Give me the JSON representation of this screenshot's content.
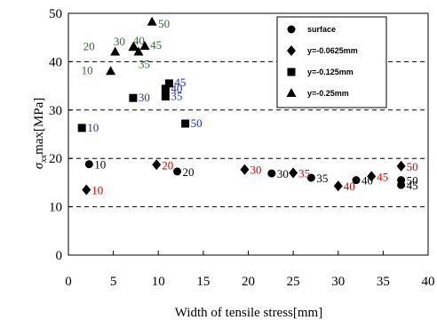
{
  "chart_data": {
    "type": "scatter",
    "xlabel": "Width of tensile stress[mm]",
    "ylabel": {
      "sigma": "σ",
      "sub": "xx",
      "rest": "max[MPa]"
    },
    "xlim": [
      0,
      40
    ],
    "ylim": [
      0,
      50
    ],
    "xticks": [
      0,
      5,
      10,
      15,
      20,
      25,
      30,
      35,
      40
    ],
    "yticks": [
      0,
      10,
      20,
      30,
      40,
      50
    ],
    "grid": "y-dashed",
    "legend_position": "top-right inside",
    "series": [
      {
        "name": "surface",
        "marker": "circle",
        "label_color": "#000000",
        "points": [
          {
            "x": 2.3,
            "y": 18.8,
            "label": "10"
          },
          {
            "x": 12.1,
            "y": 17.3,
            "label": "20"
          },
          {
            "x": 22.6,
            "y": 16.9,
            "label": "30"
          },
          {
            "x": 27.0,
            "y": 16.0,
            "label": "35"
          },
          {
            "x": 32.0,
            "y": 15.5,
            "label": "40"
          },
          {
            "x": 37.0,
            "y": 14.5,
            "label": "45"
          },
          {
            "x": 37.0,
            "y": 15.5,
            "label": "50"
          }
        ]
      },
      {
        "name": "y=-0.0625mm",
        "marker": "diamond",
        "label_color": "#cc0000",
        "points": [
          {
            "x": 2.0,
            "y": 13.5,
            "label": "10"
          },
          {
            "x": 9.8,
            "y": 18.7,
            "label": "20"
          },
          {
            "x": 19.6,
            "y": 17.7,
            "label": "30"
          },
          {
            "x": 25.0,
            "y": 17.0,
            "label": "35"
          },
          {
            "x": 30.0,
            "y": 14.3,
            "label": "40"
          },
          {
            "x": 33.7,
            "y": 16.3,
            "label": "45"
          },
          {
            "x": 37.0,
            "y": 18.4,
            "label": "50"
          }
        ]
      },
      {
        "name": "y=-0.125mm",
        "marker": "square",
        "label_color": "#1f2fb0",
        "points": [
          {
            "x": 1.5,
            "y": 26.3,
            "label": "10"
          },
          {
            "x": 7.2,
            "y": 32.5,
            "label": "30"
          },
          {
            "x": 10.8,
            "y": 32.8,
            "label": "35"
          },
          {
            "x": 10.8,
            "y": 34.4,
            "label": "40"
          },
          {
            "x": 11.2,
            "y": 35.5,
            "label": "45"
          },
          {
            "x": 13.0,
            "y": 27.2,
            "label": "50"
          }
        ]
      },
      {
        "name": "y=-0.25mm",
        "marker": "triangle",
        "label_color": "#2e6b2e",
        "points": [
          {
            "x": 4.7,
            "y": 38.0,
            "label": "10"
          },
          {
            "x": 5.2,
            "y": 42.0,
            "label": "20"
          },
          {
            "x": 7.3,
            "y": 43.0,
            "label": "30"
          },
          {
            "x": 7.8,
            "y": 42.0,
            "label": "35"
          },
          {
            "x": 7.2,
            "y": 43.0,
            "label": "40"
          },
          {
            "x": 8.5,
            "y": 43.2,
            "label": "45"
          },
          {
            "x": 9.3,
            "y": 48.2,
            "label": "50"
          }
        ]
      }
    ]
  }
}
